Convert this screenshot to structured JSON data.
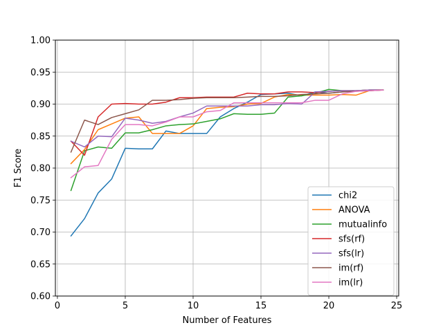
{
  "chart_data": {
    "type": "line",
    "title": "",
    "xlabel": "Number of Features",
    "ylabel": "F1 Score",
    "xlim": [
      -0.15,
      25.15
    ],
    "ylim": [
      0.6,
      1.0
    ],
    "xticks": [
      0,
      5,
      10,
      15,
      20,
      25
    ],
    "xtick_labels": [
      "0",
      "5",
      "10",
      "15",
      "20",
      "25"
    ],
    "yticks": [
      0.6,
      0.65,
      0.7,
      0.75,
      0.8,
      0.85,
      0.9,
      0.95,
      1.0
    ],
    "ytick_labels": [
      "0.60",
      "0.65",
      "0.70",
      "0.75",
      "0.80",
      "0.85",
      "0.90",
      "0.95",
      "1.00"
    ],
    "grid": true,
    "legend_position": "lower-right",
    "x": [
      1,
      2,
      3,
      4,
      5,
      6,
      7,
      8,
      9,
      10,
      11,
      12,
      13,
      14,
      15,
      16,
      17,
      18,
      19,
      20,
      21,
      22,
      23,
      24
    ],
    "series": [
      {
        "name": "chi2",
        "color": "#1f77b4",
        "values": [
          0.694,
          0.721,
          0.761,
          0.783,
          0.831,
          0.83,
          0.83,
          0.858,
          0.854,
          0.854,
          0.854,
          0.88,
          0.893,
          0.903,
          0.915,
          0.916,
          0.917,
          0.913,
          0.919,
          0.917,
          0.919,
          0.921,
          0.922,
          0.922
        ]
      },
      {
        "name": "ANOVA",
        "color": "#ff7f0e",
        "values": [
          0.807,
          0.829,
          0.86,
          0.869,
          0.878,
          0.88,
          0.854,
          0.854,
          0.854,
          0.866,
          0.893,
          0.895,
          0.896,
          0.9,
          0.901,
          0.911,
          0.915,
          0.914,
          0.914,
          0.914,
          0.915,
          0.914,
          0.921,
          0.922
        ]
      },
      {
        "name": "mutualinfo",
        "color": "#2ca02c",
        "values": [
          0.765,
          0.827,
          0.833,
          0.831,
          0.855,
          0.855,
          0.86,
          0.866,
          0.868,
          0.869,
          0.873,
          0.877,
          0.885,
          0.884,
          0.884,
          0.886,
          0.911,
          0.913,
          0.917,
          0.923,
          0.921,
          0.921,
          0.922,
          0.922
        ]
      },
      {
        "name": "sfs(rf)",
        "color": "#d62728",
        "values": [
          0.842,
          0.82,
          0.88,
          0.9,
          0.901,
          0.9,
          0.9,
          0.903,
          0.91,
          0.91,
          0.911,
          0.911,
          0.911,
          0.917,
          0.916,
          0.916,
          0.919,
          0.919,
          0.918,
          0.92,
          0.921,
          0.921,
          0.922,
          0.922
        ]
      },
      {
        "name": "sfs(lr)",
        "color": "#9467bd",
        "values": [
          0.842,
          0.833,
          0.85,
          0.849,
          0.878,
          0.875,
          0.87,
          0.873,
          0.88,
          0.886,
          0.897,
          0.897,
          0.897,
          0.897,
          0.899,
          0.899,
          0.901,
          0.9,
          0.919,
          0.92,
          0.921,
          0.921,
          0.922,
          0.922
        ]
      },
      {
        "name": "im(rf)",
        "color": "#8c564b",
        "values": [
          0.825,
          0.875,
          0.868,
          0.879,
          0.885,
          0.891,
          0.906,
          0.906,
          0.907,
          0.909,
          0.91,
          0.91,
          0.91,
          0.911,
          0.912,
          0.912,
          0.913,
          0.915,
          0.916,
          0.917,
          0.919,
          0.92,
          0.921,
          0.922
        ]
      },
      {
        "name": "im(lr)",
        "color": "#e377c2",
        "values": [
          0.785,
          0.802,
          0.804,
          0.845,
          0.868,
          0.868,
          0.866,
          0.872,
          0.88,
          0.88,
          0.888,
          0.89,
          0.902,
          0.902,
          0.902,
          0.902,
          0.902,
          0.902,
          0.906,
          0.906,
          0.916,
          0.92,
          0.921,
          0.922
        ]
      }
    ]
  }
}
